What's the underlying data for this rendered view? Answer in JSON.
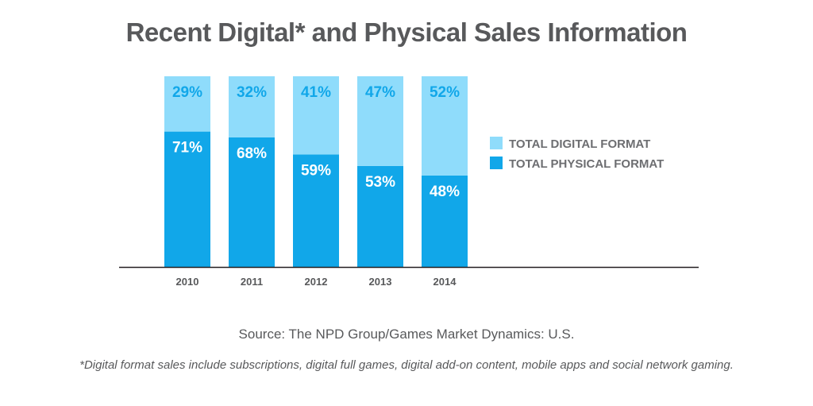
{
  "chart_data": {
    "type": "bar",
    "stacked": true,
    "title": "Recent Digital* and Physical Sales Information",
    "categories": [
      "2010",
      "2011",
      "2012",
      "2013",
      "2014"
    ],
    "series": [
      {
        "name": "TOTAL PHYSICAL FORMAT",
        "values": [
          71,
          68,
          59,
          53,
          48
        ],
        "labels": [
          "71%",
          "68%",
          "59%",
          "53%",
          "48%"
        ],
        "color": "#11a7e9"
      },
      {
        "name": "TOTAL DIGITAL FORMAT",
        "values": [
          29,
          32,
          41,
          47,
          52
        ],
        "labels": [
          "29%",
          "32%",
          "41%",
          "47%",
          "52%"
        ],
        "color": "#8fdcfb"
      }
    ],
    "ylim": [
      0,
      100
    ],
    "xlabel": "",
    "ylabel": "",
    "grid": false,
    "legend_position": "right",
    "label_colors": {
      "TOTAL PHYSICAL FORMAT": "#ffffff",
      "TOTAL DIGITAL FORMAT": "#11a7e9"
    },
    "axis_color": "#231f20"
  },
  "source": "Source: The NPD Group/Games Market Dynamics: U.S.",
  "footnote": "*Digital format sales include subscriptions, digital full games, digital add-on content, mobile apps and social network gaming."
}
